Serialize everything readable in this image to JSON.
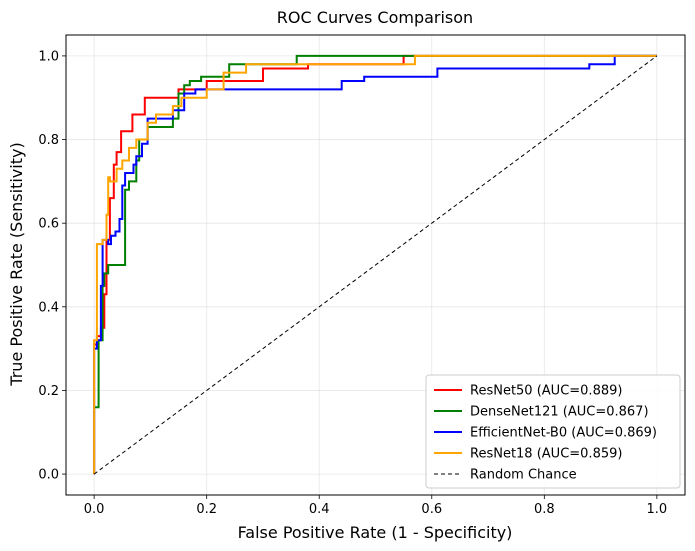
{
  "chart_data": {
    "type": "line",
    "title": "ROC Curves Comparison",
    "xlabel": "False Positive Rate (1 - Specificity)",
    "ylabel": "True Positive Rate (Sensitivity)",
    "xlim": [
      -0.05,
      1.05
    ],
    "ylim": [
      -0.05,
      1.05
    ],
    "xticks": [
      "0.0",
      "0.2",
      "0.4",
      "0.6",
      "0.8",
      "1.0"
    ],
    "yticks": [
      "0.0",
      "0.2",
      "0.4",
      "0.6",
      "0.8",
      "1.0"
    ],
    "grid": true,
    "legend_position": "bottom-right",
    "series": [
      {
        "name": "ResNet50 (AUC=0.889)",
        "color": "#ff0000",
        "x": [
          0.0,
          0.0,
          0.005,
          0.005,
          0.012,
          0.012,
          0.018,
          0.018,
          0.022,
          0.022,
          0.028,
          0.028,
          0.035,
          0.035,
          0.04,
          0.04,
          0.048,
          0.048,
          0.068,
          0.068,
          0.09,
          0.09,
          0.15,
          0.15,
          0.2,
          0.2,
          0.3,
          0.3,
          0.38,
          0.38,
          0.55,
          0.55,
          1.0
        ],
        "y": [
          0.0,
          0.31,
          0.31,
          0.33,
          0.33,
          0.35,
          0.35,
          0.43,
          0.43,
          0.56,
          0.56,
          0.66,
          0.66,
          0.74,
          0.74,
          0.77,
          0.77,
          0.82,
          0.82,
          0.86,
          0.86,
          0.9,
          0.9,
          0.92,
          0.92,
          0.94,
          0.94,
          0.97,
          0.97,
          0.98,
          0.98,
          1.0,
          1.0
        ]
      },
      {
        "name": "DenseNet121 (AUC=0.867)",
        "color": "#008000",
        "x": [
          0.0,
          0.0,
          0.008,
          0.008,
          0.015,
          0.015,
          0.018,
          0.018,
          0.025,
          0.025,
          0.055,
          0.055,
          0.062,
          0.062,
          0.075,
          0.075,
          0.08,
          0.08,
          0.095,
          0.095,
          0.14,
          0.14,
          0.15,
          0.15,
          0.16,
          0.16,
          0.17,
          0.17,
          0.19,
          0.19,
          0.24,
          0.24,
          0.36,
          0.36,
          1.0
        ],
        "y": [
          0.0,
          0.16,
          0.16,
          0.32,
          0.32,
          0.45,
          0.45,
          0.48,
          0.48,
          0.5,
          0.5,
          0.68,
          0.68,
          0.7,
          0.7,
          0.75,
          0.75,
          0.8,
          0.8,
          0.83,
          0.83,
          0.85,
          0.85,
          0.91,
          0.91,
          0.93,
          0.93,
          0.94,
          0.94,
          0.95,
          0.95,
          0.98,
          0.98,
          1.0,
          1.0
        ]
      },
      {
        "name": "EfficientNet-B0 (AUC=0.869)",
        "color": "#0000ff",
        "x": [
          0.0,
          0.0,
          0.005,
          0.005,
          0.012,
          0.012,
          0.015,
          0.015,
          0.025,
          0.025,
          0.03,
          0.03,
          0.038,
          0.038,
          0.045,
          0.045,
          0.05,
          0.05,
          0.055,
          0.055,
          0.06,
          0.06,
          0.07,
          0.07,
          0.075,
          0.075,
          0.085,
          0.085,
          0.095,
          0.095,
          0.12,
          0.12,
          0.14,
          0.14,
          0.16,
          0.16,
          0.18,
          0.18,
          0.44,
          0.44,
          0.48,
          0.48,
          0.61,
          0.61,
          0.88,
          0.88,
          0.925,
          0.925,
          1.0
        ],
        "y": [
          0.0,
          0.3,
          0.3,
          0.32,
          0.32,
          0.45,
          0.45,
          0.56,
          0.56,
          0.55,
          0.55,
          0.57,
          0.57,
          0.58,
          0.58,
          0.61,
          0.61,
          0.69,
          0.69,
          0.72,
          0.72,
          0.72,
          0.72,
          0.74,
          0.74,
          0.76,
          0.76,
          0.79,
          0.79,
          0.85,
          0.85,
          0.85,
          0.85,
          0.87,
          0.87,
          0.91,
          0.91,
          0.92,
          0.92,
          0.94,
          0.94,
          0.95,
          0.95,
          0.97,
          0.97,
          0.98,
          0.98,
          1.0,
          1.0
        ]
      },
      {
        "name": "ResNet18 (AUC=0.859)",
        "color": "#ffa500",
        "x": [
          0.0,
          0.0,
          0.005,
          0.005,
          0.015,
          0.015,
          0.022,
          0.022,
          0.025,
          0.025,
          0.028,
          0.028,
          0.04,
          0.04,
          0.05,
          0.05,
          0.062,
          0.062,
          0.075,
          0.075,
          0.095,
          0.095,
          0.11,
          0.11,
          0.14,
          0.14,
          0.155,
          0.155,
          0.2,
          0.2,
          0.23,
          0.23,
          0.27,
          0.27,
          0.57,
          0.57,
          1.0
        ],
        "y": [
          0.0,
          0.32,
          0.32,
          0.55,
          0.55,
          0.56,
          0.56,
          0.62,
          0.62,
          0.71,
          0.71,
          0.7,
          0.7,
          0.73,
          0.73,
          0.75,
          0.75,
          0.78,
          0.78,
          0.8,
          0.8,
          0.84,
          0.84,
          0.86,
          0.86,
          0.88,
          0.88,
          0.9,
          0.9,
          0.92,
          0.92,
          0.96,
          0.96,
          0.98,
          0.98,
          1.0,
          1.0
        ]
      },
      {
        "name": "Random Chance",
        "color": "#000000",
        "dashed": true,
        "x": [
          0.0,
          1.0
        ],
        "y": [
          0.0,
          1.0
        ]
      }
    ]
  }
}
